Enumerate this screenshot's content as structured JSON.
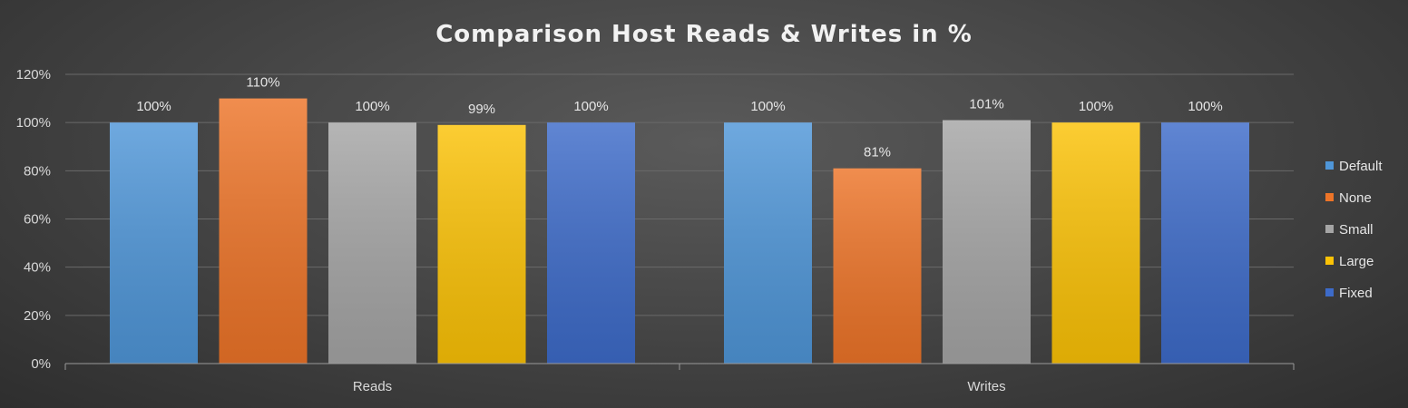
{
  "chart_data": {
    "type": "bar",
    "title": "Comparison Host Reads & Writes in %",
    "categories": [
      "Reads",
      "Writes"
    ],
    "series": [
      {
        "name": "Default",
        "values": [
          100,
          100
        ],
        "labels": [
          "100%",
          "100%"
        ],
        "color": "#4f96d8"
      },
      {
        "name": "None",
        "values": [
          110,
          81
        ],
        "labels": [
          "110%",
          "81%"
        ],
        "color": "#ed7428"
      },
      {
        "name": "Small",
        "values": [
          100,
          101
        ],
        "labels": [
          "100%",
          "101%"
        ],
        "color": "#a5a5a5"
      },
      {
        "name": "Large",
        "values": [
          99,
          100
        ],
        "labels": [
          "99%",
          "100%"
        ],
        "color": "#fbc206"
      },
      {
        "name": "Fixed",
        "values": [
          100,
          100
        ],
        "labels": [
          "100%",
          "100%"
        ],
        "color": "#3d6bc9"
      }
    ],
    "y_ticks": [
      "0%",
      "20%",
      "40%",
      "60%",
      "80%",
      "100%",
      "120%"
    ],
    "ylim": [
      0,
      120
    ],
    "grid": true,
    "legend_position": "right"
  }
}
